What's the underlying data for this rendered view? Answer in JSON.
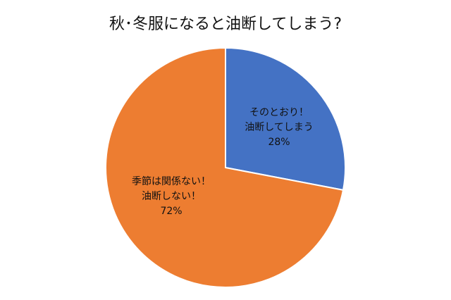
{
  "chart_data": {
    "type": "pie",
    "title": "秋･冬服になると油断してしまう?",
    "slices": [
      {
        "label_lines": [
          "そのとおり！",
          "油断してしまう"
        ],
        "value": 28,
        "value_label": "28%",
        "color": "#4472C4"
      },
      {
        "label_lines": [
          "季節は関係ない！",
          "油断しない！"
        ],
        "value": 72,
        "value_label": "72%",
        "color": "#ED7D31"
      }
    ],
    "legend": false,
    "start": "12-o'clock",
    "direction": "clockwise",
    "border_color": "#ffffff"
  }
}
